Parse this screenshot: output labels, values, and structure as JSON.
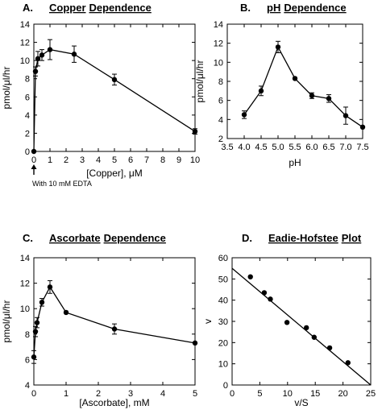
{
  "chart_data": [
    {
      "panel": "A.",
      "title_words": [
        "Copper",
        "Dependence"
      ],
      "type": "line",
      "xlabel": "[Copper], μM",
      "ylabel": "pmol/μl/hr",
      "xlim": [
        0,
        10
      ],
      "ylim": [
        0,
        14
      ],
      "xticks": [
        0,
        1,
        2,
        3,
        4,
        5,
        6,
        7,
        8,
        9,
        10
      ],
      "yticks": [
        0,
        2,
        4,
        6,
        8,
        10,
        12,
        14
      ],
      "annotation": "With 10 mM EDTA",
      "x": [
        0,
        0.1,
        0.25,
        0.5,
        1,
        2.5,
        5,
        10
      ],
      "y": [
        0,
        8.8,
        10.2,
        10.6,
        11.2,
        10.7,
        7.9,
        2.2
      ],
      "err": [
        0,
        0.5,
        0.8,
        0.6,
        1.1,
        0.9,
        0.6,
        0.3
      ]
    },
    {
      "panel": "B.",
      "title_words": [
        "pH",
        "Dependence"
      ],
      "type": "line",
      "xlabel": "pH",
      "ylabel": "pmol/μl/hr",
      "xlim": [
        3.5,
        7.5
      ],
      "ylim": [
        2,
        14
      ],
      "xticks": [
        3.5,
        4.0,
        4.5,
        5.0,
        5.5,
        6.0,
        6.5,
        7.0,
        7.5
      ],
      "yticks": [
        2,
        4,
        6,
        8,
        10,
        12,
        14
      ],
      "x": [
        4.0,
        4.5,
        5.0,
        5.5,
        6.0,
        6.5,
        7.0,
        7.5
      ],
      "y": [
        4.5,
        7.0,
        11.6,
        8.3,
        6.5,
        6.2,
        4.4,
        3.2
      ],
      "err": [
        0.4,
        0.5,
        0.6,
        0,
        0.3,
        0.4,
        0.9,
        0
      ]
    },
    {
      "panel": "C.",
      "title_words": [
        "Ascorbate",
        "Dependence"
      ],
      "type": "line",
      "xlabel": "[Ascorbate], mM",
      "ylabel": "pmol/μl/hr",
      "xlim": [
        0,
        5
      ],
      "ylim": [
        4,
        14
      ],
      "xticks": [
        0.0,
        1.0,
        2.0,
        3.0,
        4.0,
        5.0
      ],
      "yticks": [
        4,
        6,
        8,
        10,
        12,
        14
      ],
      "x": [
        0,
        0.05,
        0.1,
        0.25,
        0.5,
        1.0,
        2.5,
        5.0
      ],
      "y": [
        6.2,
        8.2,
        8.9,
        10.5,
        11.7,
        9.7,
        8.4,
        7.3
      ],
      "err": [
        0.5,
        0.4,
        0.4,
        0.3,
        0.5,
        0,
        0.4,
        0
      ]
    },
    {
      "panel": "D.",
      "title_words": [
        "Eadie-Hofstee",
        "Plot"
      ],
      "type": "scatter",
      "xlabel": "v/S",
      "ylabel": "v",
      "xlim": [
        0,
        25
      ],
      "ylim": [
        0,
        60
      ],
      "xticks": [
        0,
        5,
        10,
        15,
        20,
        25
      ],
      "yticks": [
        0,
        10,
        20,
        30,
        40,
        50,
        60
      ],
      "x": [
        3.3,
        5.8,
        6.9,
        9.9,
        13.4,
        14.8,
        17.6,
        20.9
      ],
      "y": [
        51,
        43.5,
        40.5,
        29.5,
        27,
        22.5,
        17.5,
        10.5
      ],
      "fit_line": {
        "x": [
          0,
          25
        ],
        "y": [
          55,
          0
        ]
      }
    }
  ]
}
